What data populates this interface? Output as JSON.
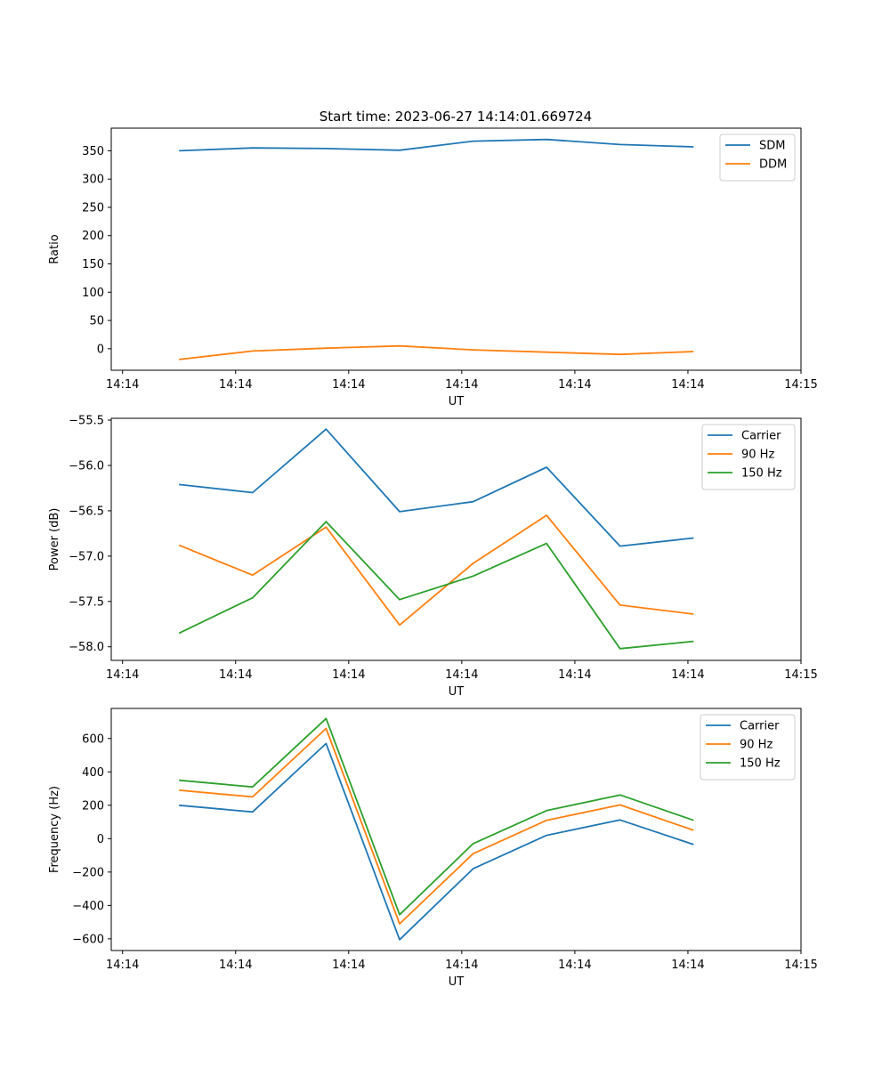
{
  "figure": {
    "title": "Start time: 2023-06-27 14:14:01.669724"
  },
  "chart_data": [
    {
      "type": "line",
      "xlabel": "UT",
      "ylabel": "Ratio",
      "x": [
        0.5,
        1.15,
        1.8,
        2.45,
        3.1,
        3.75,
        4.4,
        5.05
      ],
      "xlim": [
        -0.1,
        6.0
      ],
      "x_ticks": [
        0,
        1,
        2,
        3,
        4,
        5,
        6
      ],
      "x_tick_labels": [
        "14:14",
        "14:14",
        "14:14",
        "14:14",
        "14:14",
        "14:14",
        "14:15"
      ],
      "ylim": [
        -38,
        390
      ],
      "y_ticks": [
        0,
        50,
        100,
        150,
        200,
        250,
        300,
        350
      ],
      "y_tick_labels": [
        "0",
        "50",
        "100",
        "150",
        "200",
        "250",
        "300",
        "350"
      ],
      "legend_position": "top-right",
      "series": [
        {
          "name": "SDM",
          "color": "#1f77b4",
          "values": [
            350,
            355,
            354,
            351,
            367,
            370,
            361,
            357
          ]
        },
        {
          "name": "DDM",
          "color": "#ff7f0e",
          "values": [
            -19,
            -4,
            1,
            5,
            -2,
            -6,
            -10,
            -5
          ]
        }
      ]
    },
    {
      "type": "line",
      "xlabel": "UT",
      "ylabel": "Power (dB)",
      "x": [
        0.5,
        1.15,
        1.8,
        2.45,
        3.1,
        3.75,
        4.4,
        5.05
      ],
      "xlim": [
        -0.1,
        6.0
      ],
      "x_ticks": [
        0,
        1,
        2,
        3,
        4,
        5,
        6
      ],
      "x_tick_labels": [
        "14:14",
        "14:14",
        "14:14",
        "14:14",
        "14:14",
        "14:14",
        "14:15"
      ],
      "ylim": [
        -58.15,
        -55.48
      ],
      "y_ticks": [
        -58.0,
        -57.5,
        -57.0,
        -56.5,
        -56.0,
        -55.5
      ],
      "y_tick_labels": [
        "−58.0",
        "−57.5",
        "−57.0",
        "−56.5",
        "−56.0",
        "−55.5"
      ],
      "legend_position": "top-right",
      "series": [
        {
          "name": "Carrier",
          "color": "#1f77b4",
          "values": [
            -56.21,
            -56.3,
            -55.6,
            -56.51,
            -56.4,
            -56.02,
            -56.89,
            -56.8
          ]
        },
        {
          "name": "90 Hz",
          "color": "#ff7f0e",
          "values": [
            -56.88,
            -57.21,
            -56.68,
            -57.76,
            -57.08,
            -56.55,
            -57.54,
            -57.64
          ]
        },
        {
          "name": "150 Hz",
          "color": "#2ca02c",
          "values": [
            -57.85,
            -57.46,
            -56.62,
            -57.48,
            -57.22,
            -56.86,
            -58.02,
            -57.94
          ]
        }
      ]
    },
    {
      "type": "line",
      "xlabel": "UT",
      "ylabel": "Frequency (Hz)",
      "x": [
        0.5,
        1.15,
        1.8,
        2.45,
        3.1,
        3.75,
        4.4,
        5.05
      ],
      "xlim": [
        -0.1,
        6.0
      ],
      "x_ticks": [
        0,
        1,
        2,
        3,
        4,
        5,
        6
      ],
      "x_tick_labels": [
        "14:14",
        "14:14",
        "14:14",
        "14:14",
        "14:14",
        "14:14",
        "14:15"
      ],
      "ylim": [
        -670,
        780
      ],
      "y_ticks": [
        -600,
        -400,
        -200,
        0,
        200,
        400,
        600
      ],
      "y_tick_labels": [
        "−600",
        "−400",
        "−200",
        "0",
        "200",
        "400",
        "600"
      ],
      "legend_position": "top-right",
      "series": [
        {
          "name": "Carrier",
          "color": "#1f77b4",
          "values": [
            200,
            160,
            570,
            -605,
            -180,
            20,
            112,
            -35
          ]
        },
        {
          "name": "90 Hz",
          "color": "#ff7f0e",
          "values": [
            290,
            250,
            660,
            -510,
            -90,
            110,
            202,
            50
          ]
        },
        {
          "name": "150 Hz",
          "color": "#2ca02c",
          "values": [
            350,
            310,
            720,
            -455,
            -30,
            168,
            262,
            110
          ]
        }
      ]
    }
  ]
}
